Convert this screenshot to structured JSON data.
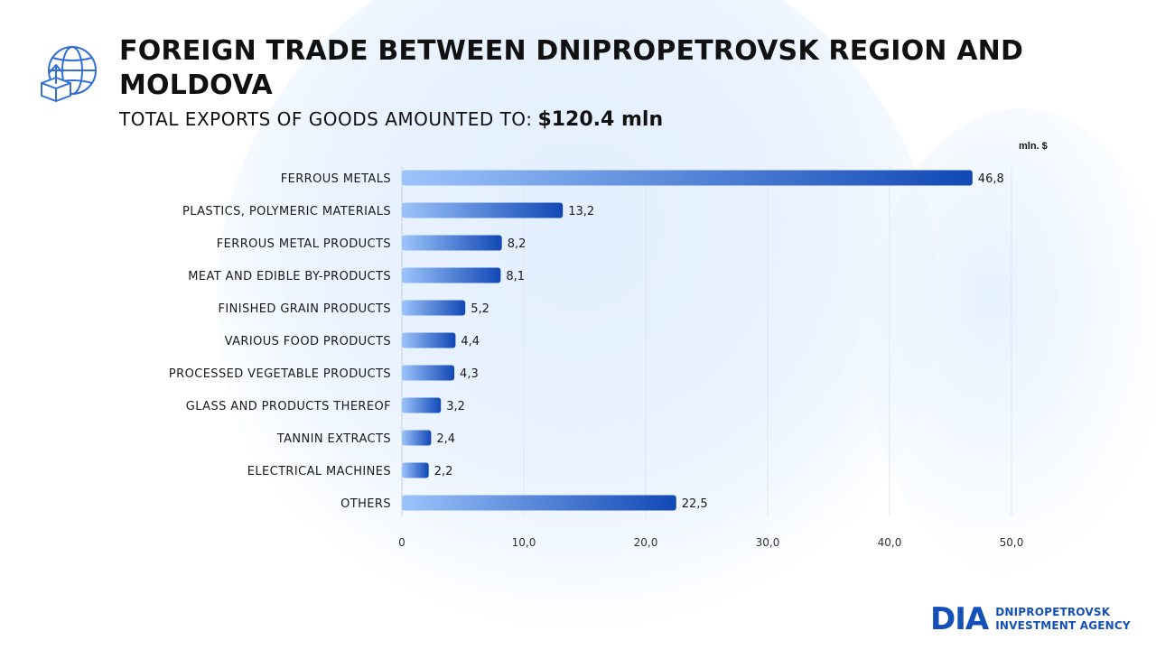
{
  "header": {
    "title": "FOREIGN TRADE BETWEEN DNIPROPETROVSK REGION AND MOLDOVA",
    "subtitle_label": "TOTAL EXPORTS OF GOODS AMOUNTED TO:",
    "subtitle_value": "$120.4 mln",
    "icon": "globe-box-export-icon"
  },
  "chart_data": {
    "type": "bar",
    "orientation": "horizontal",
    "unit": "mln. $",
    "categories": [
      "FERROUS METALS",
      "PLASTICS, POLYMERIC MATERIALS",
      "FERROUS METAL PRODUCTS",
      "MEAT AND EDIBLE BY-PRODUCTS",
      "FINISHED GRAIN PRODUCTS",
      "VARIOUS FOOD PRODUCTS",
      "PROCESSED VEGETABLE PRODUCTS",
      "GLASS AND PRODUCTS THEREOF",
      "TANNIN EXTRACTS",
      "ELECTRICAL MACHINES",
      "OTHERS"
    ],
    "values": [
      46.8,
      13.2,
      8.2,
      8.1,
      5.2,
      4.4,
      4.3,
      3.2,
      2.4,
      2.2,
      22.5
    ],
    "value_labels": [
      "46,8",
      "13,2",
      "8,2",
      "8,1",
      "5,2",
      "4,4",
      "4,3",
      "3,2",
      "2,4",
      "2,2",
      "22,5"
    ],
    "xlim": [
      0,
      50
    ],
    "x_ticks": [
      0,
      10,
      20,
      30,
      40,
      50
    ],
    "x_tick_labels": [
      "0",
      "10,0",
      "20,0",
      "30,0",
      "40,0",
      "50,0"
    ],
    "grid": true,
    "bar_color_start": "#9cc4fb",
    "bar_color_end": "#1148b5"
  },
  "logo": {
    "mark": "DIA",
    "line1": "DNIPROPETROVSK",
    "line2": "INVESTMENT AGENCY",
    "color": "#1450b8"
  }
}
